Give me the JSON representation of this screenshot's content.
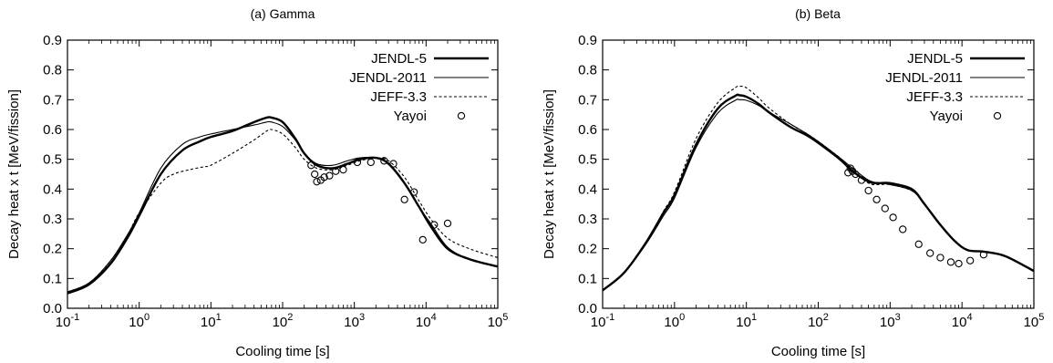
{
  "chart_data": [
    {
      "type": "line",
      "title": "(a) Gamma",
      "xlabel": "Cooling time [s]",
      "ylabel": "Decay heat x t [MeV/fission]",
      "xscale": "log",
      "xlim": [
        0.1,
        100000
      ],
      "ylim": [
        0.0,
        0.9
      ],
      "x_tick_labels": [
        {
          "base": "10",
          "exp": "-1"
        },
        {
          "base": "10",
          "exp": "0"
        },
        {
          "base": "10",
          "exp": "1"
        },
        {
          "base": "10",
          "exp": "2"
        },
        {
          "base": "10",
          "exp": "3"
        },
        {
          "base": "10",
          "exp": "4"
        },
        {
          "base": "10",
          "exp": "5"
        }
      ],
      "y_tick_labels": [
        "0.0",
        "0.1",
        "0.2",
        "0.3",
        "0.4",
        "0.5",
        "0.6",
        "0.7",
        "0.8",
        "0.9"
      ],
      "grid": false,
      "legend": "top-right",
      "series": [
        {
          "name": "JENDL-5",
          "style": "thick",
          "color": "#000000",
          "x": [
            0.1,
            0.2,
            0.4,
            0.7,
            1,
            2,
            4,
            7,
            10,
            20,
            40,
            60,
            70,
            100,
            150,
            200,
            300,
            500,
            800,
            1200,
            2000,
            3000,
            5000,
            8000,
            12000,
            20000,
            40000,
            100000
          ],
          "y": [
            0.05,
            0.08,
            0.15,
            0.24,
            0.31,
            0.45,
            0.53,
            0.56,
            0.575,
            0.595,
            0.625,
            0.64,
            0.64,
            0.625,
            0.57,
            0.52,
            0.48,
            0.47,
            0.485,
            0.5,
            0.505,
            0.485,
            0.42,
            0.34,
            0.27,
            0.2,
            0.165,
            0.14
          ]
        },
        {
          "name": "JENDL-2011",
          "style": "thin",
          "color": "#000000",
          "x": [
            0.1,
            0.2,
            0.4,
            0.7,
            1,
            2,
            4,
            7,
            10,
            20,
            40,
            60,
            70,
            100,
            150,
            200,
            300,
            500,
            800,
            1200,
            2000,
            3000,
            5000,
            8000,
            12000,
            20000,
            40000,
            100000
          ],
          "y": [
            0.055,
            0.085,
            0.16,
            0.25,
            0.32,
            0.47,
            0.55,
            0.575,
            0.585,
            0.6,
            0.615,
            0.625,
            0.625,
            0.61,
            0.565,
            0.52,
            0.485,
            0.48,
            0.495,
            0.505,
            0.505,
            0.485,
            0.42,
            0.34,
            0.28,
            0.205,
            0.165,
            0.14
          ]
        },
        {
          "name": "JEFF-3.3",
          "style": "dashed",
          "color": "#000000",
          "x": [
            0.1,
            0.2,
            0.4,
            0.7,
            1,
            2,
            3,
            5,
            8,
            10,
            20,
            40,
            60,
            70,
            100,
            150,
            200,
            300,
            500,
            800,
            1200,
            2000,
            3000,
            5000,
            8000,
            12000,
            20000,
            40000,
            100000
          ],
          "y": [
            0.055,
            0.085,
            0.16,
            0.25,
            0.32,
            0.42,
            0.45,
            0.465,
            0.475,
            0.48,
            0.52,
            0.565,
            0.595,
            0.6,
            0.585,
            0.54,
            0.5,
            0.47,
            0.465,
            0.48,
            0.495,
            0.505,
            0.495,
            0.44,
            0.36,
            0.295,
            0.235,
            0.2,
            0.17
          ]
        },
        {
          "name": "Yayoi",
          "style": "points",
          "color": "#000000",
          "x": [
            250,
            280,
            300,
            340,
            380,
            450,
            550,
            700,
            1100,
            1700,
            2600,
            3500,
            5000,
            6800,
            9000,
            13000,
            20000
          ],
          "y": [
            0.48,
            0.45,
            0.425,
            0.43,
            0.44,
            0.445,
            0.46,
            0.465,
            0.49,
            0.49,
            0.495,
            0.485,
            0.365,
            0.39,
            0.23,
            0.28,
            0.285
          ]
        }
      ]
    },
    {
      "type": "line",
      "title": "(b) Beta",
      "xlabel": "Cooling time [s]",
      "ylabel": "Decay heat x t [MeV/fission]",
      "xscale": "log",
      "xlim": [
        0.1,
        100000
      ],
      "ylim": [
        0.0,
        0.9
      ],
      "x_tick_labels": [
        {
          "base": "10",
          "exp": "-1"
        },
        {
          "base": "10",
          "exp": "0"
        },
        {
          "base": "10",
          "exp": "1"
        },
        {
          "base": "10",
          "exp": "2"
        },
        {
          "base": "10",
          "exp": "3"
        },
        {
          "base": "10",
          "exp": "4"
        },
        {
          "base": "10",
          "exp": "5"
        }
      ],
      "y_tick_labels": [
        "0.0",
        "0.1",
        "0.2",
        "0.3",
        "0.4",
        "0.5",
        "0.6",
        "0.7",
        "0.8",
        "0.9"
      ],
      "grid": false,
      "legend": "top-right",
      "series": [
        {
          "name": "JENDL-5",
          "style": "thick",
          "color": "#000000",
          "x": [
            0.1,
            0.2,
            0.4,
            0.7,
            1,
            2,
            4,
            7,
            8,
            10,
            15,
            20,
            40,
            70,
            100,
            200,
            300,
            500,
            700,
            1000,
            2000,
            3000,
            5000,
            8000,
            12000,
            20000,
            40000,
            100000
          ],
          "y": [
            0.06,
            0.12,
            0.22,
            0.32,
            0.38,
            0.55,
            0.67,
            0.713,
            0.715,
            0.71,
            0.685,
            0.66,
            0.61,
            0.58,
            0.555,
            0.5,
            0.46,
            0.425,
            0.42,
            0.42,
            0.4,
            0.35,
            0.28,
            0.225,
            0.195,
            0.19,
            0.175,
            0.125
          ]
        },
        {
          "name": "JENDL-2011",
          "style": "thin",
          "color": "#000000",
          "x": [
            0.1,
            0.2,
            0.4,
            0.7,
            1,
            2,
            4,
            7,
            8,
            10,
            15,
            20,
            40,
            70,
            100,
            200,
            300,
            500,
            700,
            1000,
            2000,
            3000,
            5000,
            8000,
            12000,
            20000,
            40000,
            100000
          ],
          "y": [
            0.062,
            0.12,
            0.215,
            0.31,
            0.37,
            0.54,
            0.655,
            0.698,
            0.7,
            0.698,
            0.68,
            0.66,
            0.62,
            0.585,
            0.56,
            0.505,
            0.47,
            0.43,
            0.42,
            0.415,
            0.395,
            0.35,
            0.28,
            0.225,
            0.195,
            0.19,
            0.175,
            0.125
          ]
        },
        {
          "name": "JEFF-3.3",
          "style": "dashed",
          "color": "#000000",
          "x": [
            0.1,
            0.2,
            0.4,
            0.7,
            1,
            2,
            4,
            7,
            8,
            10,
            15,
            20,
            40,
            70,
            100,
            200,
            300,
            500,
            700,
            1000,
            2000,
            3000,
            5000,
            8000,
            12000,
            20000,
            40000,
            100000
          ],
          "y": [
            0.062,
            0.12,
            0.22,
            0.325,
            0.39,
            0.57,
            0.69,
            0.74,
            0.745,
            0.74,
            0.705,
            0.675,
            0.62,
            0.585,
            0.56,
            0.505,
            0.465,
            0.42,
            0.415,
            0.415,
            0.395,
            0.35,
            0.28,
            0.225,
            0.195,
            0.19,
            0.175,
            0.125
          ]
        },
        {
          "name": "Yayoi",
          "style": "points",
          "color": "#000000",
          "x": [
            260,
            280,
            300,
            330,
            400,
            500,
            650,
            850,
            1100,
            1500,
            2500,
            3600,
            5000,
            7000,
            9000,
            13000,
            20000
          ],
          "y": [
            0.455,
            0.47,
            0.46,
            0.45,
            0.43,
            0.395,
            0.365,
            0.335,
            0.305,
            0.265,
            0.215,
            0.185,
            0.17,
            0.155,
            0.15,
            0.16,
            0.18
          ]
        }
      ]
    }
  ]
}
